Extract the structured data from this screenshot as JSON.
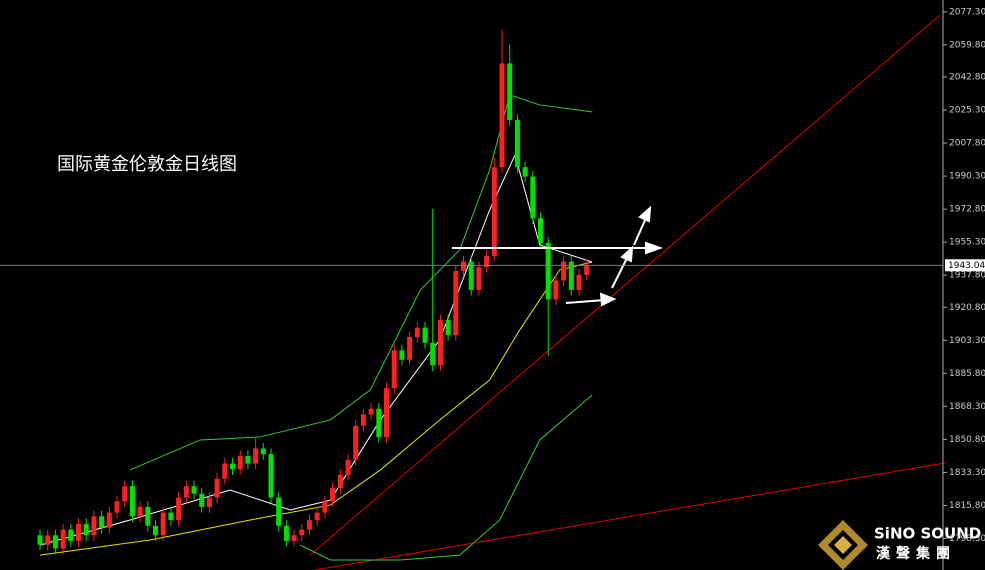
{
  "chart_data": {
    "type": "candlestick",
    "title": "国际黄金伦敦金日线图",
    "up_color": "#ff2020",
    "down_color": "#00e000",
    "open": [
      1800,
      1795,
      1800,
      1793,
      1803,
      1797,
      1806,
      1800,
      1810,
      1804,
      1812,
      1818,
      1826,
      1810,
      1815,
      1805,
      1800,
      1812,
      1808,
      1820,
      1826,
      1822,
      1815,
      1820,
      1830,
      1838,
      1835,
      1842,
      1838,
      1846,
      1843,
      1820,
      1805,
      1797,
      1800,
      1803,
      1808,
      1812,
      1818,
      1825,
      1832,
      1840,
      1858,
      1864,
      1867,
      1852,
      1878,
      1898,
      1893,
      1905,
      1910,
      1902,
      1890,
      1914,
      1906,
      1940,
      1945,
      1930,
      1942,
      1948,
      1995,
      2050,
      2020,
      1995,
      1990,
      1968,
      1955,
      1925,
      1935,
      1945,
      1930,
      1938
    ],
    "high": [
      1803,
      1803,
      1803,
      1806,
      1806,
      1809,
      1809,
      1813,
      1813,
      1815,
      1821,
      1829,
      1829,
      1818,
      1818,
      1808,
      1815,
      1815,
      1823,
      1829,
      1829,
      1825,
      1823,
      1833,
      1841,
      1841,
      1845,
      1845,
      1852,
      1849,
      1846,
      1823,
      1808,
      1803,
      1806,
      1811,
      1815,
      1821,
      1828,
      1835,
      1843,
      1861,
      1867,
      1870,
      1870,
      1881,
      1901,
      1901,
      1908,
      1913,
      1913,
      1973,
      1917,
      1917,
      1943,
      1948,
      1948,
      1945,
      1951,
      2000,
      2068,
      2060,
      2023,
      1998,
      1993,
      1971,
      1958,
      1938,
      1948,
      1948,
      1941,
      1946
    ],
    "low": [
      1792,
      1792,
      1790,
      1790,
      1794,
      1794,
      1797,
      1797,
      1801,
      1801,
      1809,
      1815,
      1807,
      1807,
      1802,
      1797,
      1797,
      1805,
      1805,
      1817,
      1819,
      1812,
      1812,
      1817,
      1827,
      1832,
      1832,
      1835,
      1835,
      1840,
      1817,
      1802,
      1794,
      1794,
      1797,
      1800,
      1805,
      1809,
      1815,
      1822,
      1829,
      1837,
      1855,
      1861,
      1849,
      1849,
      1875,
      1890,
      1890,
      1902,
      1899,
      1887,
      1887,
      1903,
      1903,
      1937,
      1927,
      1927,
      1939,
      1945,
      1992,
      2017,
      1992,
      1987,
      1965,
      1952,
      1895,
      1922,
      1932,
      1927,
      1927,
      1935
    ],
    "close": [
      1795,
      1800,
      1793,
      1803,
      1797,
      1806,
      1800,
      1810,
      1804,
      1812,
      1818,
      1826,
      1810,
      1815,
      1805,
      1800,
      1812,
      1808,
      1820,
      1826,
      1822,
      1815,
      1820,
      1830,
      1838,
      1835,
      1842,
      1838,
      1846,
      1843,
      1820,
      1805,
      1797,
      1800,
      1803,
      1808,
      1812,
      1818,
      1825,
      1832,
      1840,
      1858,
      1864,
      1867,
      1852,
      1878,
      1898,
      1893,
      1905,
      1910,
      1902,
      1890,
      1914,
      1906,
      1940,
      1945,
      1930,
      1942,
      1948,
      1995,
      2050,
      2020,
      1995,
      1990,
      1968,
      1955,
      1925,
      1935,
      1945,
      1930,
      1938,
      1943
    ],
    "lines": [
      {
        "color": "#33cc33",
        "x": [
          11.7,
          20.8,
          28.6,
          37.7,
          42.9,
          49.4,
          54.5,
          58.4,
          61,
          64.9,
          71.7
        ],
        "values": [
          1834.6,
          1850.5,
          1852.1,
          1861.1,
          1877.0,
          1930.0,
          1951.2,
          1993.6,
          2033.3,
          2028.0,
          2024.3
        ]
      },
      {
        "color": "#33cc33",
        "x": [
          33.8,
          37.7,
          46.8,
          54.5,
          59.7,
          64.9,
          71.7
        ],
        "values": [
          1794.8,
          1786.9,
          1786.9,
          1789.5,
          1808.1,
          1850.5,
          1874.3
        ]
      },
      {
        "color": "#e6e600",
        "x": [
          0,
          14.3,
          27.3,
          37.7,
          44.2,
          51.9,
          58.4,
          62.3,
          67.5,
          71.7
        ],
        "values": [
          1789.5,
          1797.5,
          1808.1,
          1816.0,
          1834.6,
          1861.1,
          1882.3,
          1908.8,
          1940.6,
          1944.8
        ]
      },
      {
        "color": "#ffffff",
        "x": [
          0,
          11.7,
          24.7,
          32.5,
          37.7,
          44.2,
          51.9,
          58.4,
          61.7,
          64.9,
          71.7
        ],
        "values": [
          1794.8,
          1808.1,
          1824.0,
          1813.4,
          1818.6,
          1861.1,
          1903.5,
          1972.4,
          2001.5,
          1953.8,
          1944.8
        ]
      }
    ],
    "last_price": 1943.04,
    "ylim": [
      1781.6,
      2083.6
    ],
    "yticks": [
      {
        "value": 2077.3,
        "label": "2077.30"
      },
      {
        "value": 2059.8,
        "label": "2059.80"
      },
      {
        "value": 2042.8,
        "label": "2042.80"
      },
      {
        "value": 2025.3,
        "label": "2025.30"
      },
      {
        "value": 2007.8,
        "label": "2007.80"
      },
      {
        "value": 1990.3,
        "label": "1990.30"
      },
      {
        "value": 1972.8,
        "label": "1972.80"
      },
      {
        "value": 1955.3,
        "label": "1955.30"
      },
      {
        "value": 1937.8,
        "label": "1937.80"
      },
      {
        "value": 1920.8,
        "label": "1920.80"
      },
      {
        "value": 1903.3,
        "label": "1903.30"
      },
      {
        "value": 1885.8,
        "label": "1885.80"
      },
      {
        "value": 1868.3,
        "label": "1868.30"
      },
      {
        "value": 1850.8,
        "label": "1850.80"
      },
      {
        "value": 1833.3,
        "label": "1833.30"
      },
      {
        "value": 1815.8,
        "label": "1815.80"
      },
      {
        "value": 1798.3,
        "label": "1798.30"
      }
    ]
  },
  "logo": {
    "name": "SiNO SOUND",
    "subtitle": "漢聲集團"
  }
}
